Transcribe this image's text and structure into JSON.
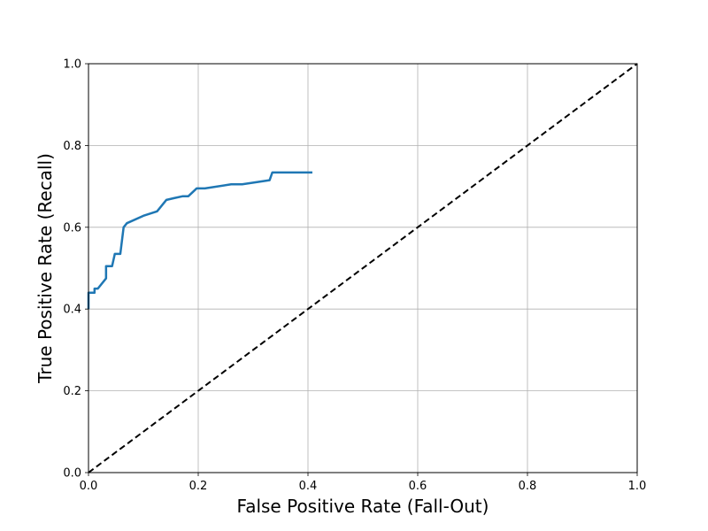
{
  "chart_data": {
    "type": "line",
    "title": "",
    "xlabel": "False Positive Rate (Fall-Out)",
    "ylabel": "True Positive Rate (Recall)",
    "xlim": [
      0.0,
      1.0
    ],
    "ylim": [
      0.0,
      1.0
    ],
    "xticks": [
      "0.0",
      "0.2",
      "0.4",
      "0.6",
      "0.8",
      "1.0"
    ],
    "yticks": [
      "0.0",
      "0.2",
      "0.4",
      "0.6",
      "0.8",
      "1.0"
    ],
    "grid": true,
    "series": [
      {
        "color": "#1f77b4",
        "style": "solid",
        "points": [
          [
            0.0,
            0.4
          ],
          [
            0.0,
            0.44
          ],
          [
            0.011,
            0.44
          ],
          [
            0.011,
            0.45
          ],
          [
            0.017,
            0.45
          ],
          [
            0.032,
            0.475
          ],
          [
            0.032,
            0.505
          ],
          [
            0.043,
            0.505
          ],
          [
            0.048,
            0.535
          ],
          [
            0.058,
            0.535
          ],
          [
            0.064,
            0.6
          ],
          [
            0.07,
            0.61
          ],
          [
            0.1,
            0.628
          ],
          [
            0.125,
            0.639
          ],
          [
            0.142,
            0.667
          ],
          [
            0.155,
            0.671
          ],
          [
            0.172,
            0.676
          ],
          [
            0.182,
            0.676
          ],
          [
            0.197,
            0.695
          ],
          [
            0.212,
            0.695
          ],
          [
            0.26,
            0.705
          ],
          [
            0.28,
            0.705
          ],
          [
            0.33,
            0.715
          ],
          [
            0.335,
            0.734
          ],
          [
            0.408,
            0.734
          ]
        ]
      },
      {
        "color": "#000000",
        "style": "dashed",
        "points": [
          [
            0.0,
            0.0
          ],
          [
            1.0,
            1.0
          ]
        ]
      }
    ]
  }
}
